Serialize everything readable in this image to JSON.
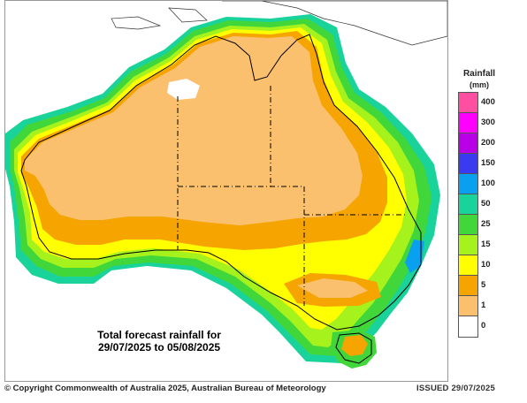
{
  "legend": {
    "title": "Rainfall",
    "unit": "(mm)",
    "bins": [
      {
        "label": "400",
        "color": "#ff4fa0"
      },
      {
        "label": "300",
        "color": "#ff00ff"
      },
      {
        "label": "200",
        "color": "#b800e6"
      },
      {
        "label": "150",
        "color": "#3a3af0"
      },
      {
        "label": "100",
        "color": "#0aa0f0"
      },
      {
        "label": "50",
        "color": "#19d39a"
      },
      {
        "label": "25",
        "color": "#41d63a"
      },
      {
        "label": "15",
        "color": "#a6f21c"
      },
      {
        "label": "10",
        "color": "#ffff00"
      },
      {
        "label": "5",
        "color": "#f5a400"
      },
      {
        "label": "1",
        "color": "#fbc06e"
      },
      {
        "label": "0",
        "color": "#ffffff"
      }
    ]
  },
  "caption": {
    "line1": "Total forecast rainfall for",
    "line2": "29/07/2025 to 05/08/2025"
  },
  "footer": {
    "copyright": "© Copyright Commonwealth of Australia 2025, Australian Bureau of Meteorology",
    "issued": "ISSUED 29/07/2025"
  },
  "colors": {
    "background": "#ffffff",
    "coastline": "#000000",
    "state_border": "#000000",
    "neighbor_land": "#ffffff"
  }
}
